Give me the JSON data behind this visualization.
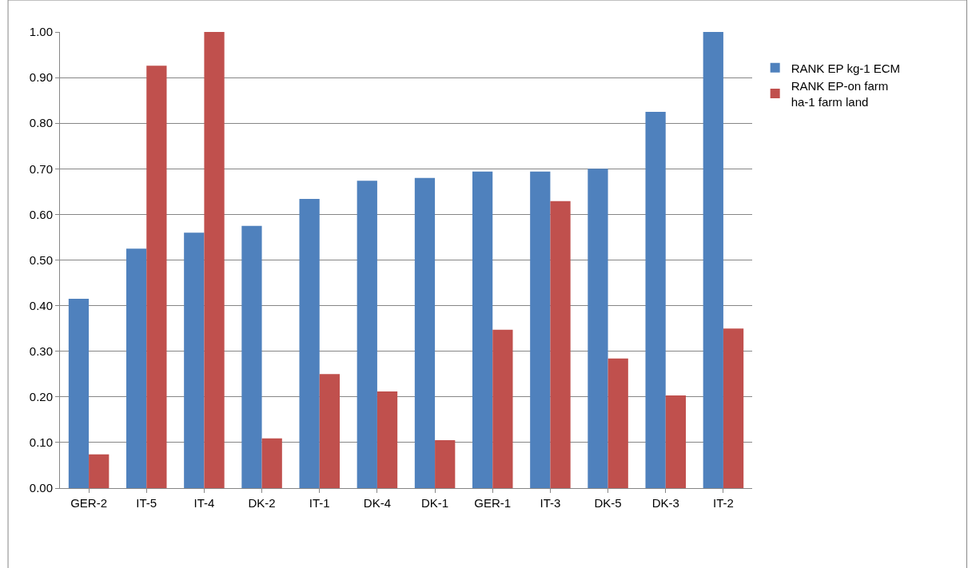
{
  "chart_data": {
    "type": "bar",
    "categories": [
      "GER-2",
      "IT-5",
      "IT-4",
      "DK-2",
      "IT-1",
      "DK-4",
      "DK-1",
      "GER-1",
      "IT-3",
      "DK-5",
      "DK-3",
      "IT-2"
    ],
    "series": [
      {
        "name": "RANK EP kg-1 ECM",
        "color": "#4f81bd",
        "values": [
          0.415,
          0.525,
          0.56,
          0.575,
          0.634,
          0.674,
          0.68,
          0.694,
          0.694,
          0.7,
          0.825,
          1.0
        ]
      },
      {
        "name": "RANK EP-on farm ha-1 farm land",
        "color": "#c0504d",
        "values": [
          0.074,
          0.926,
          1.0,
          0.109,
          0.25,
          0.212,
          0.105,
          0.347,
          0.629,
          0.284,
          0.203,
          0.35
        ]
      }
    ],
    "ylim": [
      0,
      1.0
    ],
    "yticks": [
      {
        "value": 0,
        "label": "0.00"
      },
      {
        "value": 0.1,
        "label": "0.10"
      },
      {
        "value": 0.2,
        "label": "0.20"
      },
      {
        "value": 0.3,
        "label": "0.30"
      },
      {
        "value": 0.4,
        "label": "0.40"
      },
      {
        "value": 0.5,
        "label": "0.50"
      },
      {
        "value": 0.6,
        "label": "0.60"
      },
      {
        "value": 0.7,
        "label": "0.70"
      },
      {
        "value": 0.8,
        "label": "0.80"
      },
      {
        "value": 0.9,
        "label": "0.90"
      },
      {
        "value": 1.0,
        "label": "1.00"
      }
    ],
    "grid": "y",
    "legend": "right"
  }
}
